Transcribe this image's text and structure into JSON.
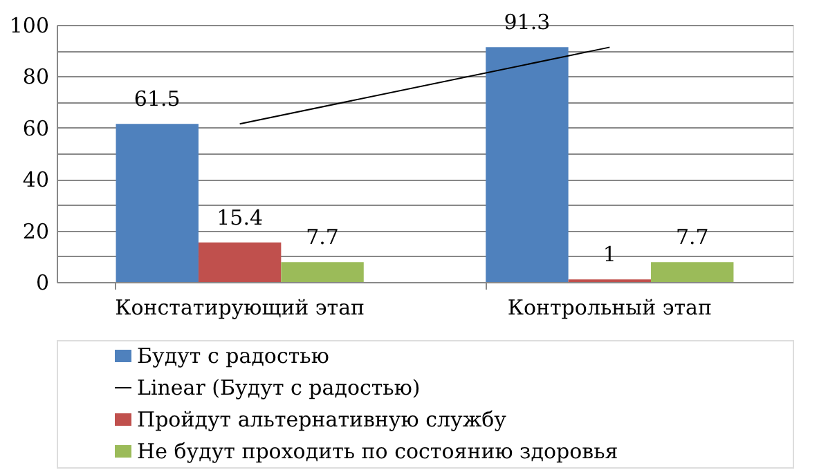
{
  "chart_data": {
    "type": "bar",
    "categories": [
      "Констатирующий этап",
      "Контрольный этап"
    ],
    "series": [
      {
        "name": "Будут с радостью",
        "color": "#4f81bd",
        "values": [
          61.5,
          91.3
        ],
        "value_labels": [
          "61.5",
          "91.3"
        ]
      },
      {
        "name": "Linear (Будут с радостью)",
        "type": "line",
        "color": "#000000",
        "values": [
          61.5,
          91.3
        ],
        "marker": "none"
      },
      {
        "name": "Пройдут альтернативную службу",
        "color": "#c0504d",
        "values": [
          15.4,
          1
        ],
        "value_labels": [
          "15.4",
          "1"
        ]
      },
      {
        "name": "Не будут проходить  по состоянию здоровья",
        "color": "#9bbb59",
        "values": [
          7.7,
          7.7
        ],
        "value_labels": [
          "7.7",
          "7.7"
        ]
      }
    ],
    "ylim": [
      0,
      100
    ],
    "yticks": [
      0,
      {
        "value": 10,
        "label": null
      },
      20,
      {
        "value": 30,
        "label": null
      },
      40,
      {
        "value": 50,
        "label": null
      },
      60,
      {
        "value": 70,
        "label": null
      },
      80,
      {
        "value": 90,
        "label": null
      },
      100
    ],
    "grid": "y",
    "legend": "bottom"
  }
}
